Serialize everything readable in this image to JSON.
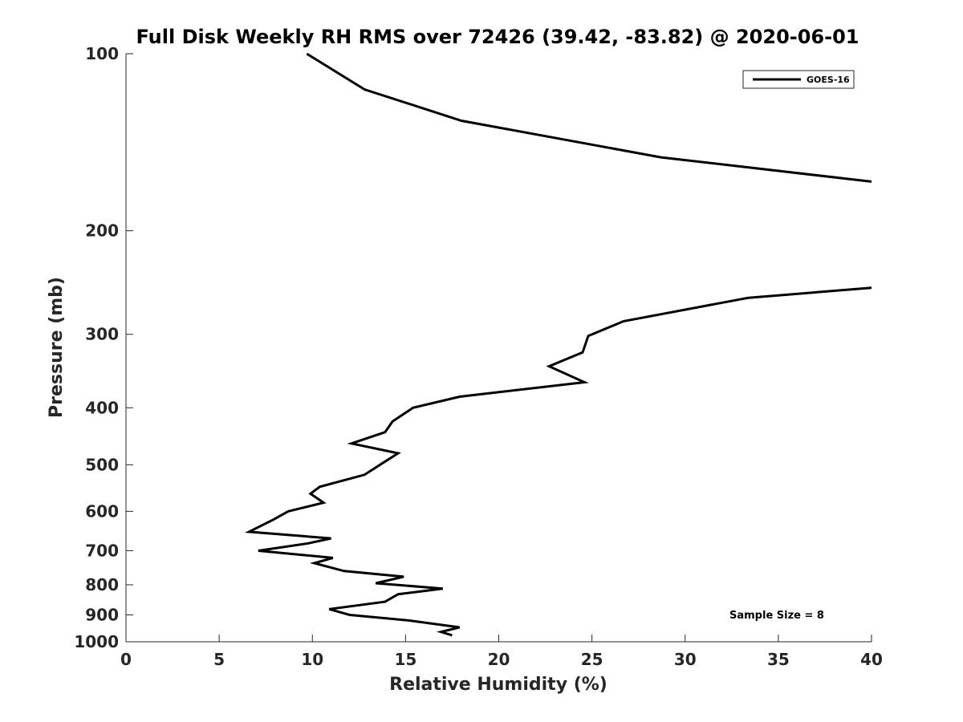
{
  "chart_data": {
    "type": "line",
    "title": "Full Disk Weekly RH RMS over 72426 (39.42, -83.82) @ 2020-06-01",
    "xlabel": "Relative Humidity (%)",
    "ylabel": "Pressure (mb)",
    "xlim": [
      0,
      40
    ],
    "ylim": [
      100,
      1000
    ],
    "y_scale": "log",
    "y_reversed": true,
    "grid": false,
    "legend_position": "top-right",
    "x_ticks": [
      "0",
      "5",
      "10",
      "15",
      "20",
      "25",
      "30",
      "35",
      "40"
    ],
    "y_ticks": [
      "100",
      "200",
      "300",
      "400",
      "500",
      "600",
      "700",
      "800",
      "900",
      "1000"
    ],
    "annotation": "Sample Size = 8",
    "series": [
      {
        "name": "GOES-16",
        "color": "#000000",
        "segments": [
          {
            "x": [
              9.7,
              12.8,
              18.0,
              28.7,
              40.0
            ],
            "y": [
              100,
              115,
              130,
              150,
              165
            ]
          },
          {
            "x": [
              40.0,
              33.4,
              26.7,
              24.8,
              24.5,
              22.7,
              24.6,
              17.9,
              15.4,
              14.3,
              13.9,
              12.1,
              14.6,
              13.8,
              12.8,
              10.4,
              9.9,
              10.6,
              8.7,
              7.9,
              6.6,
              11.0,
              9.8,
              7.1,
              11.1,
              10.1,
              11.7,
              14.9,
              13.4,
              17.0,
              14.6,
              13.9,
              10.9,
              12.0,
              15.2,
              17.9,
              16.9,
              17.5
            ],
            "y": [
              250,
              260,
              285,
              302,
              322,
              340,
              362,
              383,
              400,
              422,
              440,
              460,
              478,
              496,
              520,
              545,
              560,
              580,
              600,
              620,
              650,
              667,
              680,
              700,
              720,
              735,
              758,
              775,
              795,
              812,
              830,
              855,
              880,
              900,
              920,
              945,
              962,
              975
            ]
          }
        ]
      }
    ]
  }
}
